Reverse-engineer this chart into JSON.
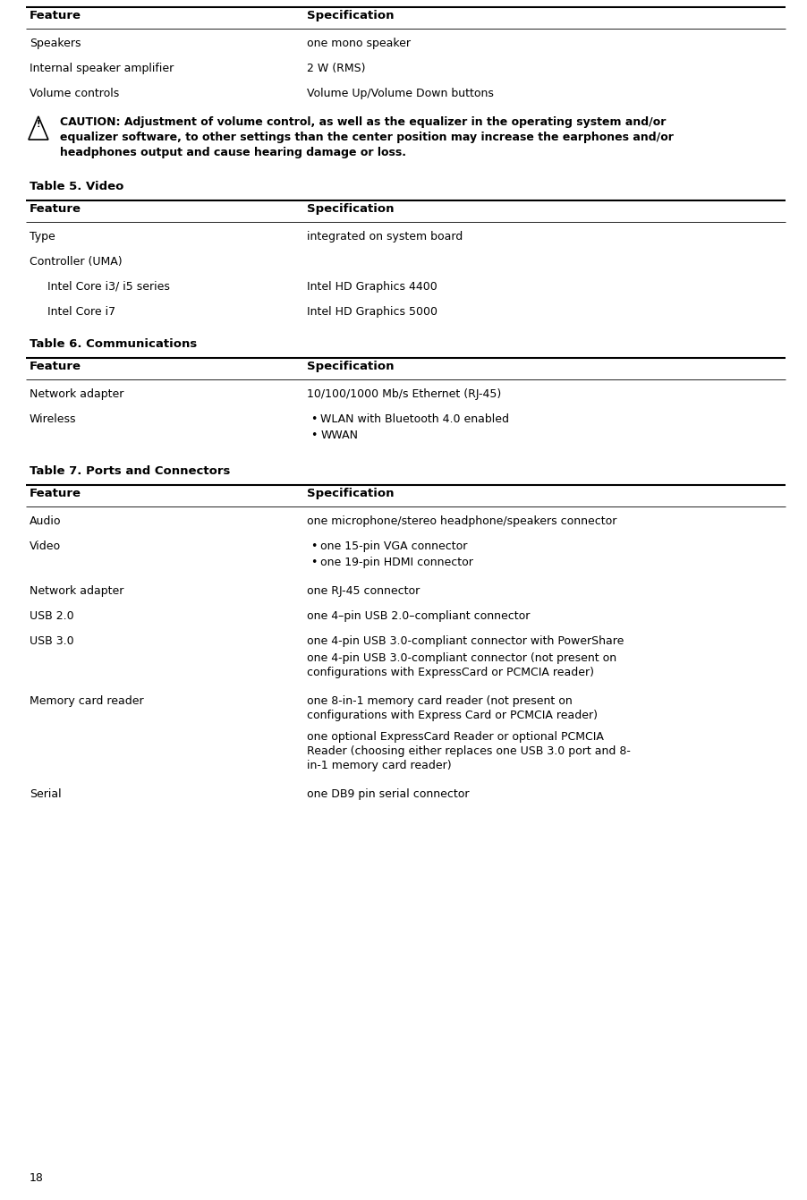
{
  "bg_color": "#ffffff",
  "text_color": "#000000",
  "lm": 0.032,
  "rm": 0.972,
  "cs": 0.375,
  "cs2": 0.38,
  "fig_w": 9.03,
  "fig_h": 13.41,
  "dpi": 100,
  "fs_header": 9.5,
  "fs_body": 9.0,
  "fs_title": 9.5,
  "fs_caution": 9.0,
  "fs_footer": 9.0,
  "lw_thick": 1.5,
  "lw_thin": 0.6,
  "line_color": "#000000",
  "caution_text_line1": "CAUTION: Adjustment of volume control, as well as the equalizer in the operating system and/or",
  "caution_text_line2": "equalizer software, to other settings than the center position may increase the earphones and/or",
  "caution_text_line3": "headphones output and cause hearing damage or loss.",
  "footer": "18"
}
